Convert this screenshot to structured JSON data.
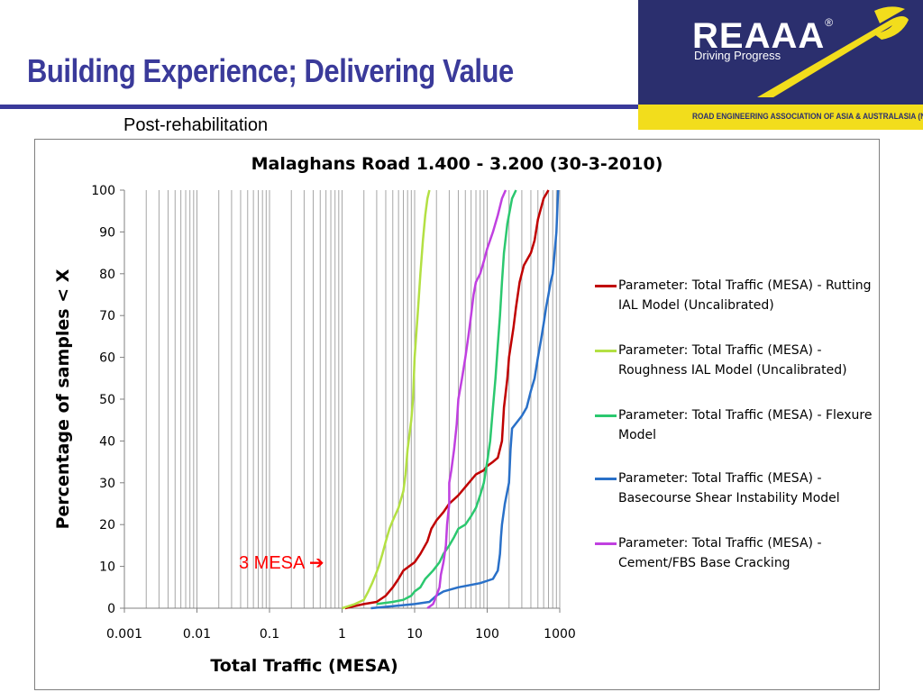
{
  "slide": {
    "title": "Building Experience; Delivering Value",
    "subtitle": "Post-rehabilitation",
    "annotation": "3 MESA ➔"
  },
  "logo": {
    "wordmark": "REAAA",
    "registered": "®",
    "tagline": "Driving Progress",
    "association": "ROAD ENGINEERING ASSOCIATION OF ASIA & AUSTRALASIA (NZ)",
    "colors": {
      "navy": "#2b2f6e",
      "yellow": "#f2dd1c"
    }
  },
  "chart_data": {
    "type": "line",
    "title": "Malaghans Road 1.400 - 3.200 (30-3-2010)",
    "xlabel": "Total Traffic (MESA)",
    "ylabel": "Percentage of samples < X",
    "xscale": "log",
    "xlim": [
      0.001,
      1000
    ],
    "ylim": [
      0,
      100
    ],
    "xticks": [
      "0.001",
      "0.01",
      "0.1",
      "1",
      "10",
      "100",
      "1000"
    ],
    "yticks": [
      "0",
      "10",
      "20",
      "30",
      "40",
      "50",
      "60",
      "70",
      "80",
      "90",
      "100"
    ],
    "grid": "vertical minor log gridlines",
    "legend_position": "right",
    "series": [
      {
        "name": "Parameter: Total Traffic (MESA) - Rutting IAL Model (Uncalibrated)",
        "color": "#c00000",
        "points": [
          [
            1.1,
            0
          ],
          [
            2,
            1
          ],
          [
            3,
            1.5
          ],
          [
            4,
            3
          ],
          [
            5,
            5
          ],
          [
            6,
            7
          ],
          [
            7,
            9
          ],
          [
            10,
            11
          ],
          [
            12,
            13
          ],
          [
            15,
            16
          ],
          [
            17,
            19
          ],
          [
            20,
            21
          ],
          [
            25,
            23
          ],
          [
            30,
            25
          ],
          [
            40,
            27
          ],
          [
            50,
            29
          ],
          [
            70,
            32
          ],
          [
            90,
            33
          ],
          [
            100,
            34
          ],
          [
            120,
            35
          ],
          [
            140,
            36
          ],
          [
            160,
            40
          ],
          [
            170,
            48
          ],
          [
            190,
            55
          ],
          [
            200,
            60
          ],
          [
            230,
            67
          ],
          [
            250,
            72
          ],
          [
            280,
            78
          ],
          [
            320,
            82
          ],
          [
            400,
            85
          ],
          [
            450,
            88
          ],
          [
            500,
            93
          ],
          [
            600,
            98
          ],
          [
            700,
            100
          ]
        ]
      },
      {
        "name": "Parameter: Total Traffic (MESA) - Roughness IAL Model (Uncalibrated)",
        "color": "#b3e043",
        "points": [
          [
            1,
            0
          ],
          [
            1.5,
            1
          ],
          [
            2,
            2
          ],
          [
            2.3,
            4
          ],
          [
            2.6,
            6
          ],
          [
            2.9,
            8
          ],
          [
            3.2,
            10
          ],
          [
            3.6,
            13
          ],
          [
            4,
            16
          ],
          [
            4.5,
            19
          ],
          [
            5,
            21
          ],
          [
            6,
            24
          ],
          [
            7,
            28
          ],
          [
            7.5,
            32
          ],
          [
            8,
            38
          ],
          [
            9,
            45
          ],
          [
            9.5,
            50
          ],
          [
            10,
            60
          ],
          [
            11,
            70
          ],
          [
            12,
            80
          ],
          [
            13,
            88
          ],
          [
            14,
            94
          ],
          [
            15,
            98
          ],
          [
            16,
            100
          ]
        ]
      },
      {
        "name": "Parameter: Total Traffic (MESA) - Flexure Model",
        "color": "#2bc86f",
        "points": [
          [
            3,
            1
          ],
          [
            5,
            1.5
          ],
          [
            7,
            2
          ],
          [
            9,
            3
          ],
          [
            10,
            4
          ],
          [
            12,
            5
          ],
          [
            14,
            7
          ],
          [
            18,
            9
          ],
          [
            22,
            11
          ],
          [
            25,
            13
          ],
          [
            30,
            15
          ],
          [
            35,
            17
          ],
          [
            40,
            19
          ],
          [
            50,
            20
          ],
          [
            60,
            22
          ],
          [
            70,
            24
          ],
          [
            80,
            27
          ],
          [
            90,
            30
          ],
          [
            100,
            35
          ],
          [
            110,
            40
          ],
          [
            120,
            48
          ],
          [
            130,
            55
          ],
          [
            140,
            63
          ],
          [
            150,
            70
          ],
          [
            160,
            78
          ],
          [
            170,
            85
          ],
          [
            190,
            92
          ],
          [
            220,
            98
          ],
          [
            250,
            100
          ]
        ]
      },
      {
        "name": "Parameter: Total Traffic (MESA) - Basecourse Shear Instability Model",
        "color": "#2970c8",
        "points": [
          [
            2.5,
            0
          ],
          [
            5,
            0.5
          ],
          [
            10,
            1
          ],
          [
            16,
            1.5
          ],
          [
            20,
            3
          ],
          [
            25,
            4
          ],
          [
            40,
            5
          ],
          [
            80,
            6
          ],
          [
            120,
            7
          ],
          [
            140,
            9
          ],
          [
            150,
            13
          ],
          [
            155,
            17
          ],
          [
            160,
            20
          ],
          [
            175,
            25
          ],
          [
            200,
            30
          ],
          [
            210,
            38
          ],
          [
            220,
            43
          ],
          [
            300,
            46
          ],
          [
            350,
            48
          ],
          [
            400,
            52
          ],
          [
            450,
            55
          ],
          [
            500,
            60
          ],
          [
            550,
            64
          ],
          [
            600,
            68
          ],
          [
            650,
            72
          ],
          [
            700,
            75
          ],
          [
            750,
            78
          ],
          [
            800,
            80
          ],
          [
            850,
            85
          ],
          [
            900,
            90
          ],
          [
            950,
            100
          ]
        ]
      },
      {
        "name": "Parameter: Total Traffic (MESA) - Cement/FBS Base Cracking",
        "color": "#c040e0",
        "points": [
          [
            15,
            0
          ],
          [
            18,
            1
          ],
          [
            20,
            3
          ],
          [
            22,
            5
          ],
          [
            23,
            8
          ],
          [
            25,
            11
          ],
          [
            27,
            15
          ],
          [
            28,
            20
          ],
          [
            30,
            25
          ],
          [
            30,
            30
          ],
          [
            32,
            33
          ],
          [
            35,
            38
          ],
          [
            38,
            44
          ],
          [
            40,
            50
          ],
          [
            45,
            55
          ],
          [
            50,
            60
          ],
          [
            55,
            65
          ],
          [
            60,
            70
          ],
          [
            65,
            75
          ],
          [
            70,
            78
          ],
          [
            80,
            80
          ],
          [
            90,
            83
          ],
          [
            100,
            86
          ],
          [
            120,
            90
          ],
          [
            140,
            94
          ],
          [
            160,
            98
          ],
          [
            180,
            100
          ]
        ]
      }
    ]
  }
}
